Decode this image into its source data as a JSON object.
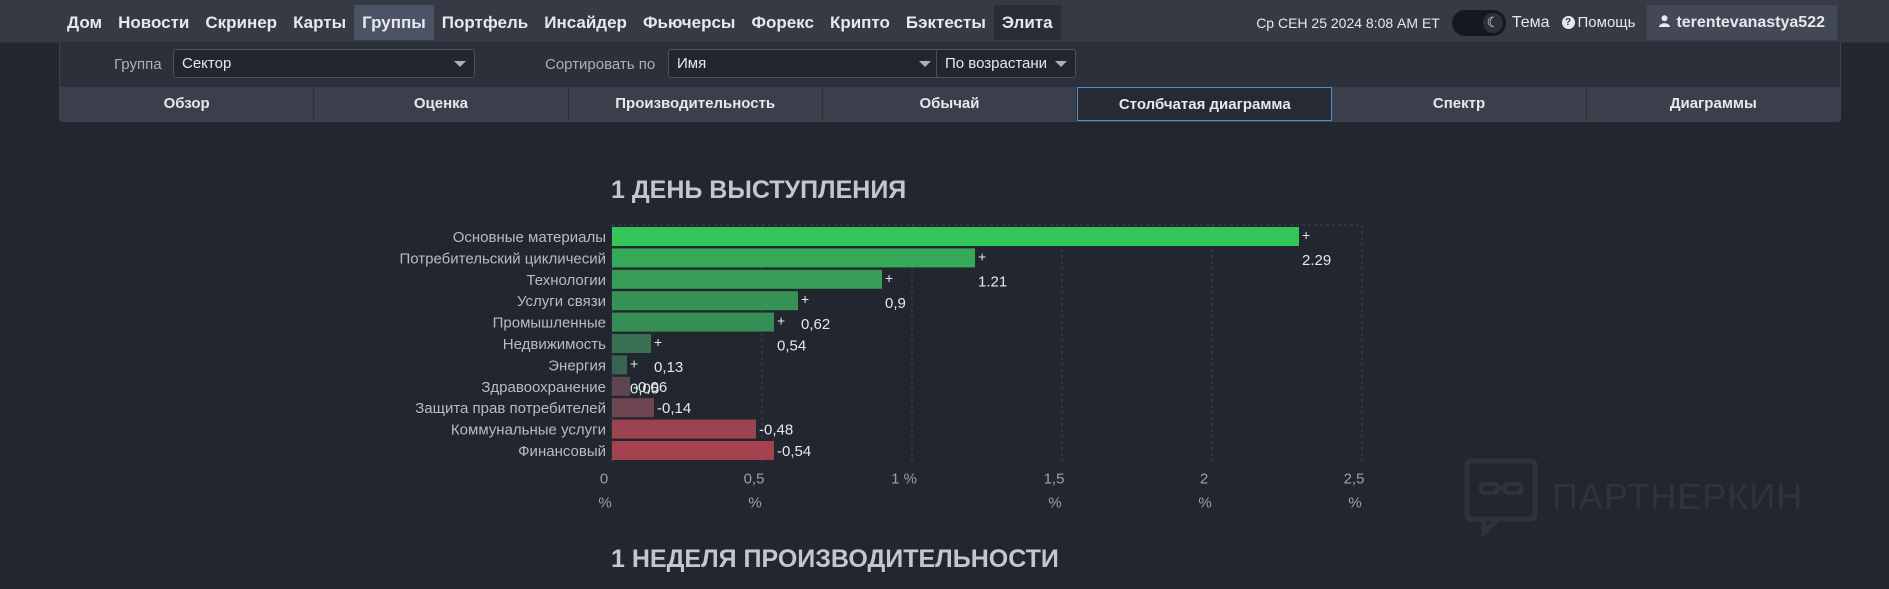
{
  "nav": {
    "links": [
      "Дом",
      "Новости",
      "Скринер",
      "Карты",
      "Группы",
      "Портфель",
      "Инсайдер",
      "Фьючерсы",
      "Форекс",
      "Крипто",
      "Бэктесты",
      "Элита"
    ],
    "datetime": "Ср СЕН 25 2024 8:08 AM ET",
    "theme_label": "Тема",
    "help_label": "Помощь",
    "username": "terentevanastya522"
  },
  "filters": {
    "group_label": "Группа",
    "group_value": "Сектор",
    "sort_label": "Сортировать по",
    "sort_value": "Имя",
    "order_value": "По возрастани"
  },
  "tabs": [
    "Обзор",
    "Оценка",
    "Производительность",
    "Обычай",
    "Столбчатая диаграмма",
    "Спектр",
    "Диаграммы"
  ],
  "section1_title": "1 ДЕНЬ ВЫСТУПЛЕНИЯ",
  "section2_title": "1 НЕДЕЛЯ ПРОИЗВОДИТЕЛЬНОСТИ",
  "watermark": "ПАРТНЕРКИН",
  "chart_data": {
    "type": "bar",
    "orientation": "horizontal",
    "title": "1 ДЕНЬ ВЫСТУПЛЕНИЯ",
    "categories": [
      "Основные материалы",
      "Потребительский цикличесий",
      "Технологии",
      "Услуги связи",
      "Промышленные",
      "Недвижимость",
      "Энергия",
      "Здравоохранение",
      "Защита прав потребителей",
      "Коммунальные услуги",
      "Финансовый"
    ],
    "values": [
      2.29,
      1.21,
      0.9,
      0.62,
      0.54,
      0.13,
      0.05,
      -0.06,
      -0.14,
      -0.48,
      -0.54
    ],
    "value_labels": [
      "2.29",
      "1.21",
      "0,9",
      "0,62",
      "0,54",
      "0,13",
      "0,05",
      "-0,06",
      "-0,14",
      "-0,48",
      "-0,54"
    ],
    "xlim": [
      0,
      2.5
    ],
    "x_ticks": [
      "0",
      "0,5",
      "1 %",
      "1,5",
      "2",
      "2,5"
    ],
    "x_tick_units": [
      "%",
      "%",
      "",
      "%",
      "%",
      "%"
    ],
    "grid": true,
    "colors": {
      "pos_high": "#33c75a",
      "pos_low": "#3b4f50",
      "neg_low": "#4f4750",
      "neg_high": "#a44250"
    }
  }
}
